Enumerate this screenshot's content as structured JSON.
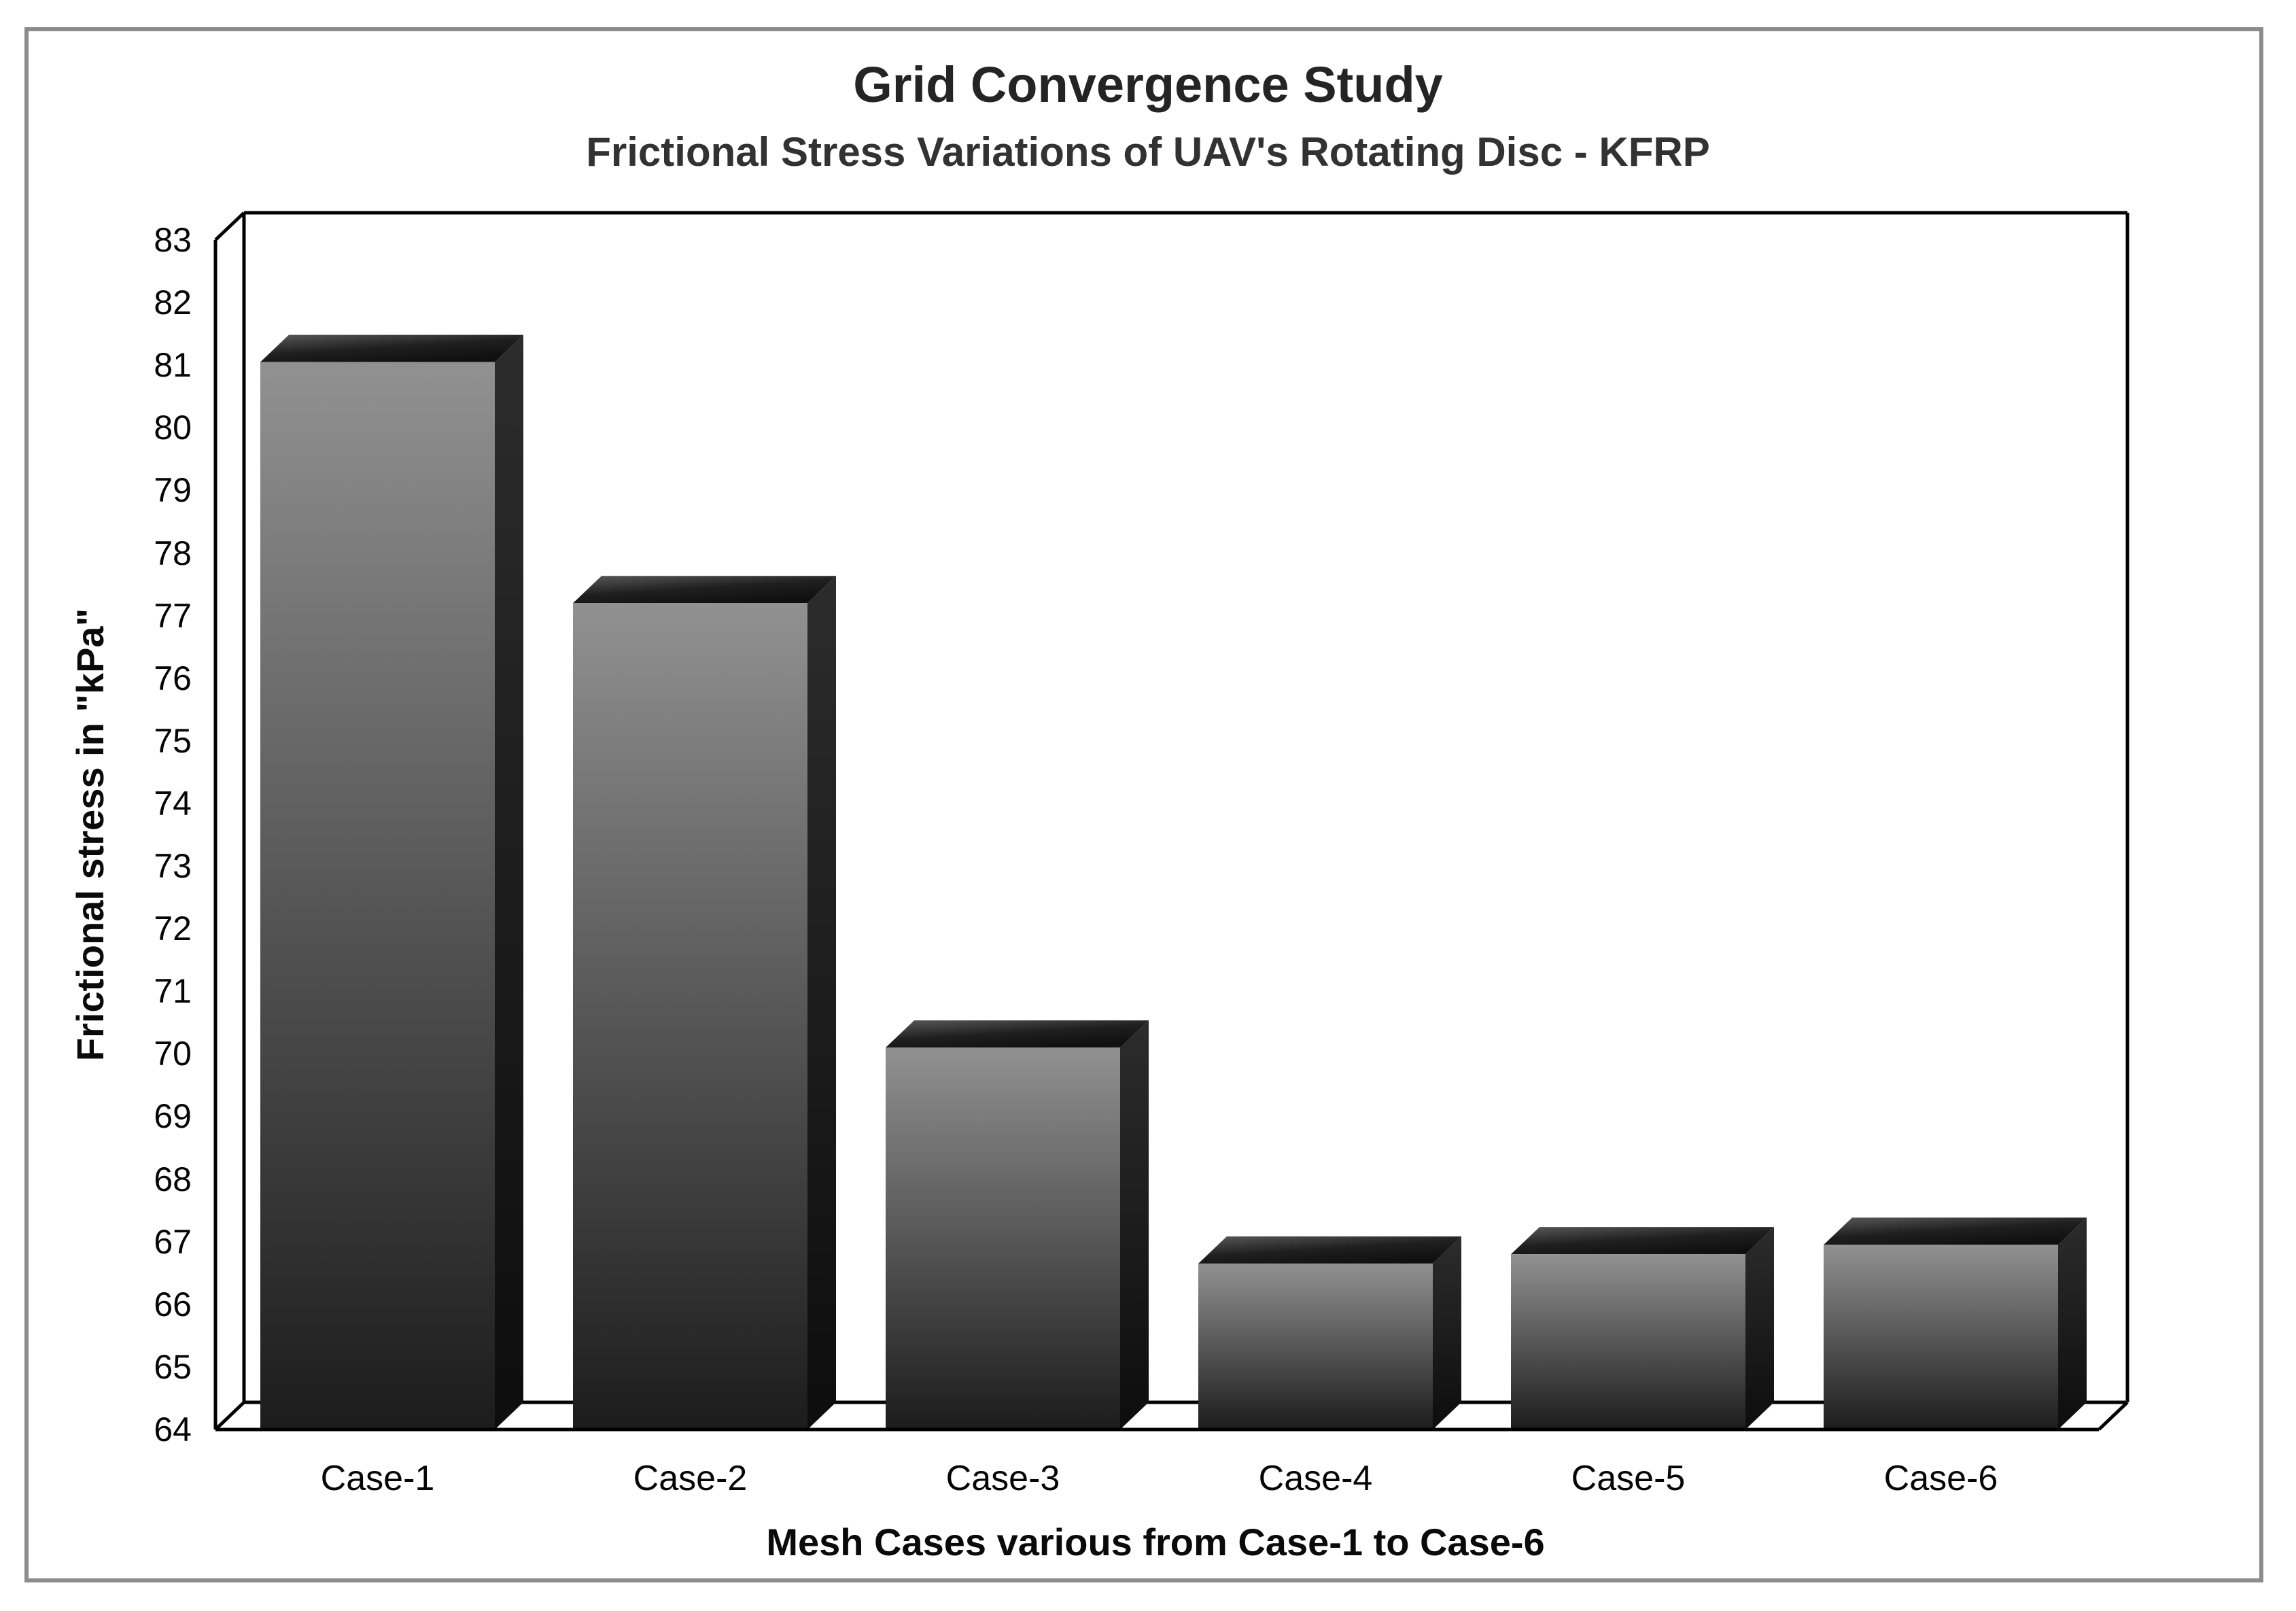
{
  "window": {
    "background": "#ffffff",
    "frame_color": "#8c8c8c"
  },
  "chart_data": {
    "type": "bar",
    "style": "3d-column",
    "title": "Grid Convergence Study",
    "subtitle": "Frictional Stress Variations of UAV's Rotating Disc - KFRP",
    "xlabel": "Mesh Cases various from Case-1 to Case-6",
    "ylabel": "Frictional stress in \"kPa\"",
    "categories": [
      "Case-1",
      "Case-2",
      "Case-3",
      "Case-4",
      "Case-5",
      "Case-6"
    ],
    "values": [
      81.05,
      77.2,
      70.1,
      66.65,
      66.8,
      66.95
    ],
    "unit": "kPa",
    "ylim": [
      64,
      83
    ],
    "ytick_step": 1,
    "y_ticks": [
      83,
      82,
      81,
      80,
      79,
      78,
      77,
      76,
      75,
      74,
      73,
      72,
      71,
      70,
      69,
      68,
      67,
      66,
      65,
      64
    ],
    "grid": false,
    "legend": null,
    "colors": {
      "bar_front_top": "#909090",
      "bar_front_bottom": "#1c1c1c",
      "bar_top_face_light": "#555555",
      "bar_top_face_dark": "#101010",
      "bar_side_face_light": "#2a2a2a",
      "bar_side_face_dark": "#0e0e0e",
      "axis_line": "#000000"
    }
  }
}
